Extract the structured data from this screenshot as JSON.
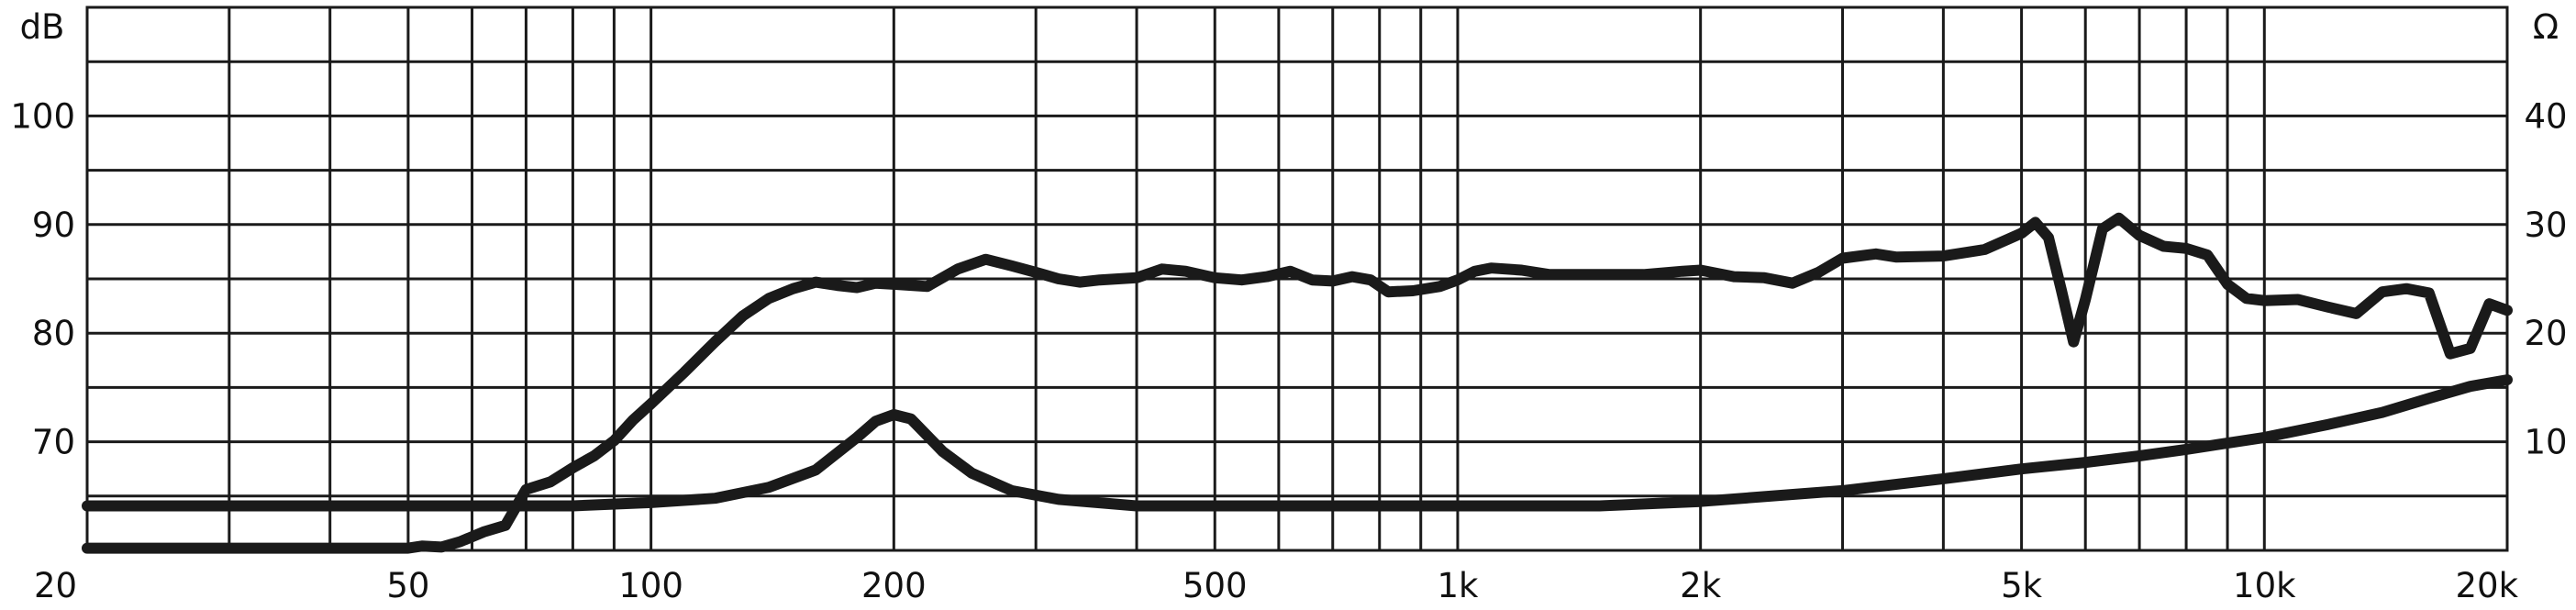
{
  "chart_data": {
    "type": "line",
    "x_scale": "log",
    "xlim": [
      20,
      20000
    ],
    "x_ticks": [
      {
        "value": 20,
        "label": "20"
      },
      {
        "value": 50,
        "label": "50"
      },
      {
        "value": 100,
        "label": "100"
      },
      {
        "value": 200,
        "label": "200"
      },
      {
        "value": 500,
        "label": "500"
      },
      {
        "value": 1000,
        "label": "1k"
      },
      {
        "value": 2000,
        "label": "2k"
      },
      {
        "value": 5000,
        "label": "5k"
      },
      {
        "value": 10000,
        "label": "10k"
      },
      {
        "value": 20000,
        "label": "20k"
      }
    ],
    "left_axis": {
      "unit": "dB",
      "ylim": [
        60,
        110
      ],
      "ticks": [
        {
          "value": 100,
          "label": "100"
        },
        {
          "value": 90,
          "label": "90"
        },
        {
          "value": 80,
          "label": "80"
        },
        {
          "value": 70,
          "label": "70"
        }
      ]
    },
    "right_axis": {
      "unit": "Ω",
      "ylim": [
        0,
        50
      ],
      "ticks": [
        {
          "value": 40,
          "label": "40"
        },
        {
          "value": 30,
          "label": "30"
        },
        {
          "value": 20,
          "label": "20"
        },
        {
          "value": 10,
          "label": "10"
        }
      ]
    },
    "grid": true,
    "series": [
      {
        "axis": "left",
        "points": [
          [
            20,
            60.2
          ],
          [
            30,
            60.2
          ],
          [
            40,
            60.2
          ],
          [
            50,
            60.2
          ],
          [
            52,
            60.4
          ],
          [
            55,
            60.3
          ],
          [
            58,
            60.8
          ],
          [
            62,
            61.7
          ],
          [
            66,
            62.3
          ],
          [
            70,
            65.6
          ],
          [
            75,
            66.3
          ],
          [
            80,
            67.6
          ],
          [
            85,
            68.7
          ],
          [
            90,
            70.1
          ],
          [
            95,
            72.0
          ],
          [
            100,
            73.5
          ],
          [
            110,
            76.4
          ],
          [
            120,
            79.2
          ],
          [
            130,
            81.6
          ],
          [
            140,
            83.2
          ],
          [
            150,
            84.1
          ],
          [
            160,
            84.7
          ],
          [
            170,
            84.4
          ],
          [
            180,
            84.2
          ],
          [
            190,
            84.6
          ],
          [
            200,
            84.5
          ],
          [
            220,
            84.3
          ],
          [
            240,
            85.9
          ],
          [
            260,
            86.8
          ],
          [
            280,
            86.2
          ],
          [
            300,
            85.6
          ],
          [
            320,
            85.0
          ],
          [
            340,
            84.7
          ],
          [
            360,
            84.9
          ],
          [
            400,
            85.1
          ],
          [
            430,
            85.9
          ],
          [
            460,
            85.7
          ],
          [
            500,
            85.1
          ],
          [
            540,
            84.9
          ],
          [
            580,
            85.2
          ],
          [
            620,
            85.7
          ],
          [
            660,
            84.9
          ],
          [
            700,
            84.8
          ],
          [
            740,
            85.2
          ],
          [
            780,
            84.9
          ],
          [
            820,
            83.8
          ],
          [
            880,
            83.9
          ],
          [
            950,
            84.3
          ],
          [
            1000,
            84.9
          ],
          [
            1050,
            85.7
          ],
          [
            1100,
            86.0
          ],
          [
            1200,
            85.8
          ],
          [
            1300,
            85.4
          ],
          [
            1500,
            85.4
          ],
          [
            1700,
            85.4
          ],
          [
            1900,
            85.7
          ],
          [
            2000,
            85.8
          ],
          [
            2200,
            85.2
          ],
          [
            2400,
            85.1
          ],
          [
            2600,
            84.6
          ],
          [
            2800,
            85.6
          ],
          [
            3000,
            86.9
          ],
          [
            3300,
            87.3
          ],
          [
            3500,
            87.0
          ],
          [
            4000,
            87.1
          ],
          [
            4500,
            87.7
          ],
          [
            5000,
            89.2
          ],
          [
            5200,
            90.2
          ],
          [
            5400,
            88.8
          ],
          [
            5600,
            84.0
          ],
          [
            5800,
            79.2
          ],
          [
            6000,
            83.1
          ],
          [
            6300,
            89.6
          ],
          [
            6600,
            90.6
          ],
          [
            7000,
            89.0
          ],
          [
            7500,
            88.0
          ],
          [
            8000,
            87.8
          ],
          [
            8500,
            87.2
          ],
          [
            9000,
            84.5
          ],
          [
            9500,
            83.2
          ],
          [
            10000,
            83.0
          ],
          [
            11000,
            83.1
          ],
          [
            12000,
            82.4
          ],
          [
            13000,
            81.8
          ],
          [
            14000,
            83.8
          ],
          [
            15000,
            84.1
          ],
          [
            16000,
            83.7
          ],
          [
            17000,
            78.1
          ],
          [
            18000,
            78.6
          ],
          [
            19000,
            82.7
          ],
          [
            20000,
            82.1
          ]
        ]
      },
      {
        "axis": "left",
        "points": [
          [
            20,
            64.1
          ],
          [
            50,
            64.1
          ],
          [
            80,
            64.1
          ],
          [
            100,
            64.4
          ],
          [
            120,
            64.8
          ],
          [
            140,
            65.8
          ],
          [
            160,
            67.4
          ],
          [
            180,
            70.4
          ],
          [
            190,
            71.9
          ],
          [
            200,
            72.5
          ],
          [
            210,
            72.1
          ],
          [
            230,
            69.1
          ],
          [
            250,
            67.1
          ],
          [
            280,
            65.5
          ],
          [
            320,
            64.7
          ],
          [
            400,
            64.1
          ],
          [
            600,
            64.1
          ],
          [
            1000,
            64.1
          ],
          [
            1500,
            64.1
          ],
          [
            2000,
            64.5
          ],
          [
            3000,
            65.5
          ],
          [
            4000,
            66.6
          ],
          [
            5000,
            67.5
          ],
          [
            6000,
            68.1
          ],
          [
            7000,
            68.7
          ],
          [
            8000,
            69.3
          ],
          [
            10000,
            70.4
          ],
          [
            12000,
            71.6
          ],
          [
            14000,
            72.7
          ],
          [
            16000,
            74.0
          ],
          [
            18000,
            75.1
          ],
          [
            20000,
            75.7
          ]
        ]
      }
    ]
  }
}
